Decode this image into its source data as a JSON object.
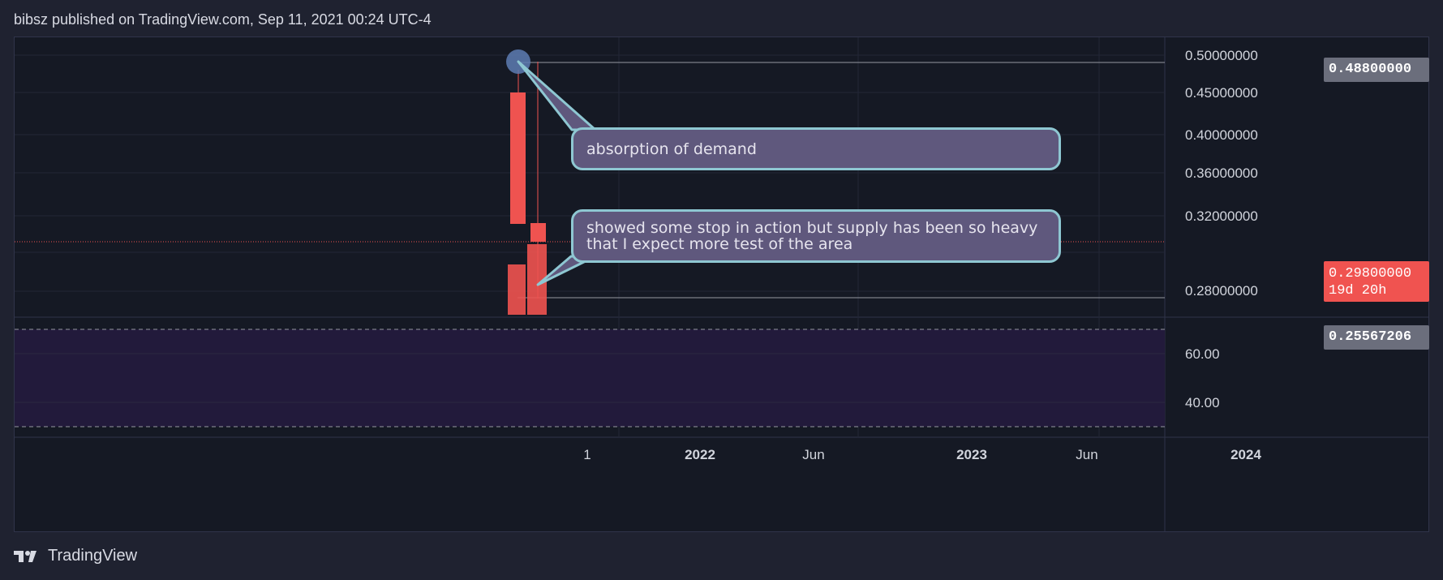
{
  "header": {
    "publish_line": "bibsz published on TradingView.com, Sep 11, 2021 00:24 UTC-4"
  },
  "price_axis": {
    "ticks": [
      "0.50000000",
      "0.45000000",
      "0.40000000",
      "0.36000000",
      "0.32000000",
      "0.28000000"
    ],
    "badges": {
      "high": "0.48800000",
      "current": "0.29800000",
      "countdown": "19d 20h",
      "low": "0.25567206"
    }
  },
  "indicator_axis": {
    "ticks": [
      "60.00",
      "40.00"
    ]
  },
  "time_axis": {
    "ticks": [
      "1",
      "2022",
      "Jun",
      "2023",
      "Jun",
      "2024"
    ]
  },
  "annotations": {
    "callout_top": "absorption of demand",
    "callout_bottom": "showed some stop in action but supply has been so heavy that I expect more test of the area"
  },
  "footer": {
    "brand": "TradingView"
  },
  "colors": {
    "background": "#151924",
    "candle_down": "#ef5350",
    "callout_fill": "#5f587d",
    "callout_border": "#8ec7d2",
    "indicator_band": "#221a3b"
  },
  "chart_data": {
    "type": "candlestick",
    "candles": [
      {
        "open": 0.45,
        "high": 0.488,
        "low": 0.31,
        "close": 0.31
      },
      {
        "open": 0.31,
        "high": 0.488,
        "low": 0.2557,
        "close": 0.298
      }
    ],
    "volume_bars": 2,
    "price_range": [
      0.2557,
      0.5
    ],
    "indicator_levels": [
      70,
      30
    ]
  }
}
